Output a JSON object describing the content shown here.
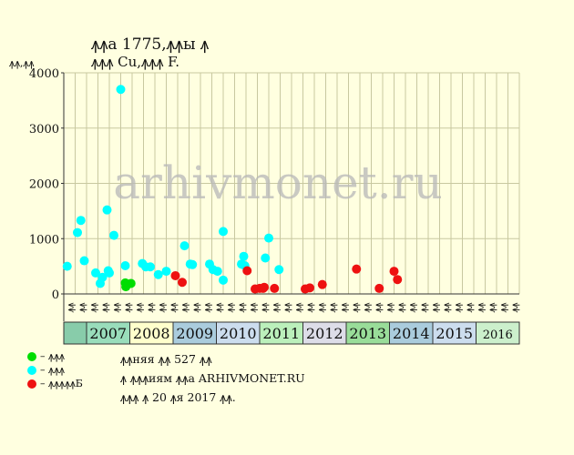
{
  "header": {
    "title": "ꙟꙟа 1775,ꙟꙟы ꙟ",
    "subtitle": "ꙟꙟꙟ Cu,ꙟꙟꙟ F.",
    "y_unit": "ꙟꙟ,ꙟꙟ"
  },
  "legend": [
    {
      "symbol": "– ꙟꙟꙟ",
      "color": "#00dd00"
    },
    {
      "symbol": "– ꙟꙟꙟ",
      "color": "#00ffff"
    },
    {
      "symbol": "– ꙟꙟꙟꙟꙟБ",
      "color": "#ee1111"
    }
  ],
  "notes": [
    "ꙟꙟняя ꙟꙟ 527 ꙟꙟ",
    "ꙟ ꙟꙟꙟиям ꙟꙟа ARHIVMONET.RU",
    "ꙟꙟꙟ ꙟ 20 ꙟя 2017 ꙟꙟ."
  ],
  "watermark": "arhivmonet.ru",
  "colors": {
    "background": "#ffffe0",
    "grid": "#c8c8a0",
    "green": "#00dd00",
    "cyan": "#00ffff",
    "red": "#ee1111"
  },
  "chart_data": {
    "type": "scatter",
    "ylim": [
      0,
      4000
    ],
    "yticks": [
      0,
      1000,
      2000,
      3000,
      4000
    ],
    "quarter_labels": [
      "ꙟꙟ",
      "ꙟꙟ",
      "ꙟꙟ",
      "ꙟꙟ"
    ],
    "years": [
      {
        "label": "2007",
        "color": "#99ddbb"
      },
      {
        "label": "2008",
        "color": "#ffffcc"
      },
      {
        "label": "2009",
        "color": "#aaccdd"
      },
      {
        "label": "2010",
        "color": "#ccddee"
      },
      {
        "label": "2011",
        "color": "#bbf0bb"
      },
      {
        "label": "2012",
        "color": "#dddde8"
      },
      {
        "label": "2013",
        "color": "#99dd99"
      },
      {
        "label": "2014",
        "color": "#aaccdd"
      },
      {
        "label": "2015",
        "color": "#ccddee"
      },
      {
        "label": "2016",
        "color": "#ccf0cc"
      }
    ],
    "x_note": "x is measured in quarters counted from the first period shown (fractional positions within a quarter)",
    "series": [
      {
        "name": "– ꙟꙟꙟ",
        "color": "#00dd00",
        "points": [
          [
            5.4,
            200
          ],
          [
            5.45,
            130
          ],
          [
            5.9,
            190
          ]
        ]
      },
      {
        "name": "– ꙟꙟꙟ",
        "color": "#00ffff",
        "points": [
          [
            0.3,
            500
          ],
          [
            1.2,
            1110
          ],
          [
            1.5,
            1330
          ],
          [
            1.8,
            600
          ],
          [
            2.8,
            380
          ],
          [
            3.2,
            190
          ],
          [
            3.4,
            300
          ],
          [
            3.8,
            1520
          ],
          [
            3.9,
            420
          ],
          [
            4.0,
            380
          ],
          [
            4.4,
            1060
          ],
          [
            5.0,
            3700
          ],
          [
            5.4,
            510
          ],
          [
            6.9,
            550
          ],
          [
            7.2,
            490
          ],
          [
            7.6,
            490
          ],
          [
            8.3,
            350
          ],
          [
            9.0,
            410
          ],
          [
            10.6,
            870
          ],
          [
            11.1,
            540
          ],
          [
            11.3,
            530
          ],
          [
            12.8,
            540
          ],
          [
            13.1,
            440
          ],
          [
            13.5,
            410
          ],
          [
            14.0,
            1130
          ],
          [
            14.0,
            250
          ],
          [
            15.6,
            540
          ],
          [
            15.8,
            680
          ],
          [
            15.9,
            510
          ],
          [
            17.7,
            650
          ],
          [
            18.0,
            1010
          ],
          [
            18.9,
            440
          ]
        ]
      },
      {
        "name": "– ꙟꙟꙟꙟꙟБ",
        "color": "#ee1111",
        "points": [
          [
            9.8,
            330
          ],
          [
            10.4,
            210
          ],
          [
            16.1,
            420
          ],
          [
            16.8,
            90
          ],
          [
            17.2,
            100
          ],
          [
            17.5,
            100
          ],
          [
            17.6,
            120
          ],
          [
            18.5,
            100
          ],
          [
            21.2,
            90
          ],
          [
            21.6,
            110
          ],
          [
            22.7,
            170
          ],
          [
            25.7,
            450
          ],
          [
            27.7,
            100
          ],
          [
            29.0,
            410
          ],
          [
            29.3,
            260
          ]
        ]
      }
    ]
  }
}
